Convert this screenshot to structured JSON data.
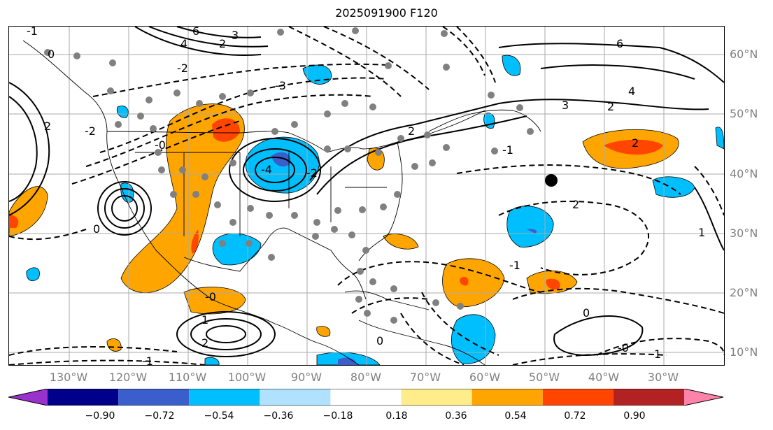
{
  "title": "2025091900 F120",
  "lat_labels": [
    "60°N",
    "50°N",
    "40°N",
    "30°N",
    "20°N",
    "10°N"
  ],
  "lon_labels": [
    "130°W",
    "120°W",
    "110°W",
    "100°W",
    "90°W",
    "80°W",
    "70°W",
    "60°W",
    "50°W",
    "40°W",
    "30°W"
  ],
  "colorbar": {
    "ticks": [
      "−0.90",
      "−0.72",
      "−0.54",
      "−0.36",
      "−0.18",
      "0.18",
      "0.36",
      "0.54",
      "0.72",
      "0.90"
    ],
    "colors": [
      "#9932cc",
      "#00008b",
      "#3a5fcd",
      "#00bfff",
      "#b0e2ff",
      "#ffffff",
      "#ffec8b",
      "#ffa500",
      "#ff4500",
      "#b22222",
      "#ff82ab"
    ]
  },
  "contour_labels": [
    "0",
    "-1",
    "4",
    "2",
    "3",
    "-2",
    "-3",
    "6",
    "-0",
    "1",
    "2",
    "-1",
    "0",
    "-2",
    "2",
    "-0",
    "-4",
    "-2",
    "2",
    "-1",
    "0",
    "2",
    "-1",
    "-0",
    "0",
    "1",
    "3",
    "4",
    "6",
    "2",
    "2",
    "1"
  ],
  "storm_marker": "black-dot"
}
